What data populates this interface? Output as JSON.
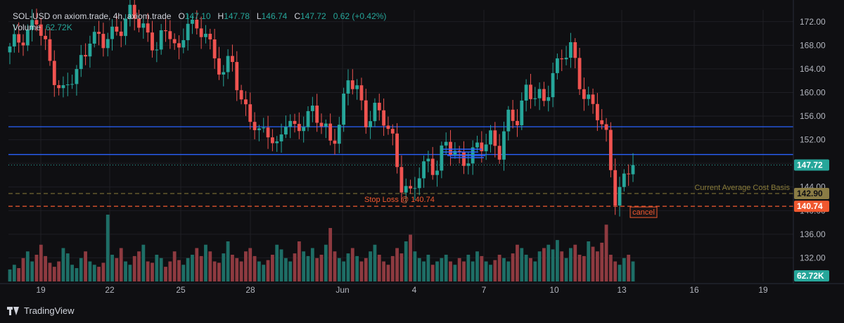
{
  "header": {
    "symbol": "SOL-USD on axiom.trade, 4h, axiom.trade",
    "o_label": "O",
    "o_value": "147.10",
    "h_label": "H",
    "h_value": "147.78",
    "l_label": "L",
    "l_value": "146.74",
    "c_label": "C",
    "c_value": "147.72",
    "change": "0.62 (+0.42%)",
    "volume_label": "Volume",
    "volume_value": "62.72K"
  },
  "footer": {
    "brand": "TradingView"
  },
  "colors": {
    "up": "#26a69a",
    "down": "#ef5350",
    "vol_up": "#1e6e66",
    "vol_down": "#8e3a40",
    "level_line": "#2962ff",
    "avg_cost": "#8b7d3a",
    "stop_loss": "#f0582f",
    "background": "#0f0f12",
    "grid": "#1f1f24"
  },
  "chart_data": {
    "type": "candlestick",
    "ylim": [
      128,
      174
    ],
    "y_ticks": [
      "172.00",
      "168.00",
      "164.00",
      "160.00",
      "156.00",
      "152.00",
      "148.00",
      "144.00",
      "140.00",
      "136.00",
      "132.00"
    ],
    "x_ticks": [
      "19",
      "22",
      "25",
      "28",
      "Jun",
      "4",
      "7",
      "10",
      "13",
      "16",
      "19"
    ],
    "price_labels": {
      "last": "147.72",
      "avg_cost": "142.90",
      "stop_loss": "140.74",
      "volume": "62.72K"
    },
    "horizontal_levels": [
      154.2,
      149.5
    ],
    "avg_cost_level": 142.9,
    "stop_loss_level": 140.74,
    "last_price": 147.72,
    "annotations": {
      "avg_cost_text": "Current Average Cost Basis",
      "stop_loss_text": "Stop Loss @ 140.74",
      "cancel_text": "cancel"
    },
    "close_path": [
      [
        0,
        167
      ],
      [
        3,
        170
      ],
      [
        6,
        172
      ],
      [
        9,
        165
      ],
      [
        12,
        160
      ],
      [
        15,
        163
      ],
      [
        18,
        170
      ],
      [
        21,
        168
      ],
      [
        24,
        171
      ],
      [
        27,
        173
      ],
      [
        30,
        171
      ],
      [
        33,
        168
      ],
      [
        36,
        170
      ],
      [
        38,
        167
      ],
      [
        40,
        173
      ],
      [
        42,
        169
      ],
      [
        44,
        171
      ],
      [
        46,
        166
      ],
      [
        48,
        163
      ],
      [
        50,
        165
      ],
      [
        52,
        159
      ],
      [
        54,
        156
      ],
      [
        56,
        152
      ],
      [
        58,
        154
      ],
      [
        60,
        151
      ],
      [
        62,
        155
      ],
      [
        64,
        153
      ],
      [
        66,
        156
      ],
      [
        68,
        157
      ],
      [
        70,
        154
      ],
      [
        72,
        152
      ],
      [
        74,
        155
      ],
      [
        76,
        162
      ],
      [
        78,
        160
      ],
      [
        80,
        156
      ],
      [
        82,
        157
      ],
      [
        84,
        155
      ],
      [
        86,
        152
      ],
      [
        88,
        145
      ],
      [
        90,
        142
      ],
      [
        92,
        146
      ],
      [
        94,
        149
      ],
      [
        96,
        147
      ],
      [
        98,
        151
      ],
      [
        100,
        150
      ],
      [
        102,
        149
      ],
      [
        104,
        149
      ],
      [
        106,
        151
      ],
      [
        108,
        153
      ],
      [
        110,
        150
      ],
      [
        112,
        155
      ],
      [
        114,
        156
      ],
      [
        116,
        161
      ],
      [
        118,
        159
      ],
      [
        120,
        158
      ],
      [
        122,
        164
      ],
      [
        124,
        166
      ],
      [
        126,
        167
      ],
      [
        128,
        162
      ],
      [
        130,
        159
      ],
      [
        132,
        156
      ],
      [
        134,
        152
      ],
      [
        136,
        143
      ],
      [
        138,
        145
      ],
      [
        140,
        147.72
      ]
    ],
    "volume_levels": [
      0.18,
      0.25,
      0.2,
      0.35,
      0.45,
      0.3,
      0.4,
      0.55,
      0.38,
      0.28,
      0.22,
      0.3,
      0.5,
      0.42,
      0.25,
      0.2,
      0.35,
      0.45,
      0.3,
      0.25,
      0.22,
      0.28,
      1.0,
      0.4,
      0.35,
      0.5,
      0.3,
      0.25,
      0.38,
      0.45,
      0.55,
      0.3,
      0.28,
      0.4,
      0.35,
      0.22,
      0.3,
      0.45,
      0.32,
      0.25,
      0.35,
      0.4,
      0.5,
      0.38,
      0.55,
      0.45,
      0.3,
      0.28,
      0.42,
      0.6,
      0.4,
      0.35,
      0.3,
      0.45,
      0.5,
      0.38,
      0.3,
      0.25,
      0.32,
      0.4,
      0.55,
      0.48,
      0.35,
      0.3,
      0.42,
      0.6,
      0.45,
      0.38,
      0.5,
      0.35,
      0.4,
      0.55,
      0.8,
      0.45,
      0.35,
      0.3,
      0.42,
      0.5,
      0.38,
      0.3,
      0.35,
      0.45,
      0.55,
      0.4,
      0.3,
      0.25,
      0.38,
      0.5,
      0.42,
      0.6,
      0.7,
      0.45,
      0.35,
      0.3,
      0.4,
      0.25,
      0.3,
      0.35,
      0.4,
      0.3,
      0.25,
      0.35,
      0.3,
      0.4,
      0.3,
      0.45,
      0.38,
      0.3,
      0.25,
      0.32,
      0.4,
      0.35,
      0.3,
      0.42,
      0.55,
      0.5,
      0.4,
      0.35,
      0.3,
      0.45,
      0.5,
      0.55,
      0.48,
      0.62,
      0.45,
      0.35,
      0.5,
      0.55,
      0.4,
      0.38,
      0.6,
      0.52,
      0.45,
      0.58,
      0.85,
      0.4,
      0.3,
      0.25,
      0.35,
      0.4,
      0.3,
      0.38,
      0.2
    ]
  }
}
